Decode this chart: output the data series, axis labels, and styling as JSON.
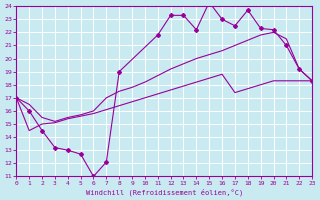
{
  "xlabel": "Windchill (Refroidissement éolien,°C)",
  "xlim": [
    0,
    23
  ],
  "ylim": [
    11,
    24
  ],
  "xticks": [
    0,
    1,
    2,
    3,
    4,
    5,
    6,
    7,
    8,
    9,
    10,
    11,
    12,
    13,
    14,
    15,
    16,
    17,
    18,
    19,
    20,
    21,
    22,
    23
  ],
  "yticks": [
    11,
    12,
    13,
    14,
    15,
    16,
    17,
    18,
    19,
    20,
    21,
    22,
    23,
    24
  ],
  "background_color": "#c8eaf0",
  "grid_color": "#b0cdd4",
  "line_color": "#990099",
  "line1_x": [
    0,
    1,
    2,
    3,
    4,
    5,
    6,
    7,
    8,
    11,
    12,
    13,
    14,
    15,
    16,
    17,
    18,
    19,
    20,
    21,
    22,
    23
  ],
  "line1_y": [
    17.0,
    16.0,
    14.5,
    13.2,
    13.0,
    12.7,
    11.0,
    12.1,
    19.0,
    21.8,
    23.3,
    23.3,
    22.2,
    24.3,
    23.0,
    22.5,
    23.7,
    22.3,
    22.2,
    21.0,
    19.2,
    18.3
  ],
  "line2_x": [
    0,
    1,
    2,
    3,
    4,
    5,
    6,
    7,
    8,
    9,
    10,
    11,
    12,
    13,
    14,
    15,
    16,
    17,
    18,
    19,
    20,
    21,
    22,
    23
  ],
  "line2_y": [
    17.0,
    16.5,
    15.5,
    15.2,
    15.5,
    15.7,
    16.0,
    17.0,
    17.5,
    17.8,
    18.2,
    18.7,
    19.2,
    19.6,
    20.0,
    20.3,
    20.6,
    21.0,
    21.4,
    21.8,
    22.0,
    21.5,
    19.2,
    18.3
  ],
  "line3_x": [
    0,
    1,
    2,
    3,
    4,
    5,
    6,
    7,
    8,
    9,
    10,
    11,
    12,
    13,
    14,
    15,
    16,
    17,
    18,
    19,
    20,
    21,
    22,
    23
  ],
  "line3_y": [
    17.0,
    14.5,
    15.0,
    15.1,
    15.4,
    15.6,
    15.8,
    16.1,
    16.4,
    16.7,
    17.0,
    17.3,
    17.6,
    17.9,
    18.2,
    18.5,
    18.8,
    17.4,
    17.7,
    18.0,
    18.3,
    18.3,
    18.3,
    18.3
  ]
}
